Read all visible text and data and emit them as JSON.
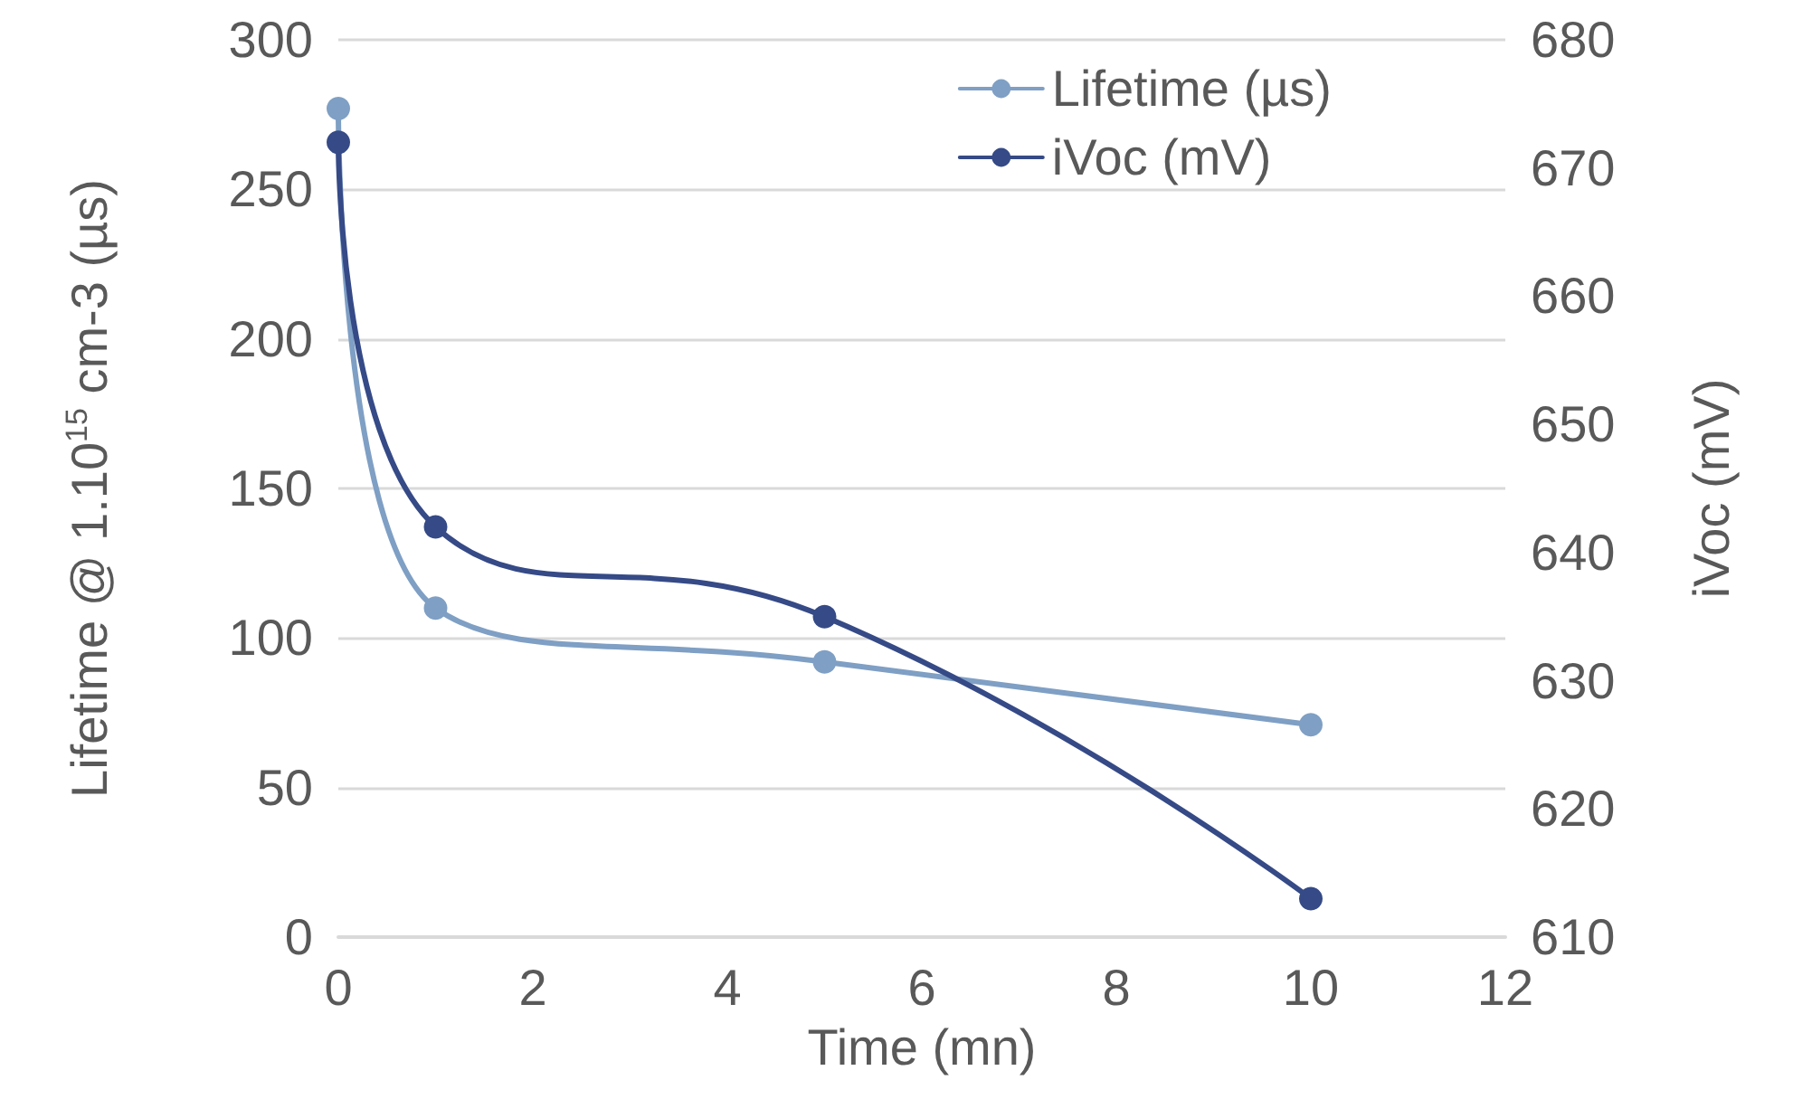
{
  "chart_data": {
    "type": "line",
    "xlabel": "Time (mn)",
    "ylabel": "Lifetime @ 1.10$^{15}$ cm-3 (µs)",
    "y2label": "iVoc (mV)",
    "x": [
      0,
      1,
      5,
      10
    ],
    "series": [
      {
        "name": "Lifetime (µs)",
        "color": "#7f9fc4",
        "values": [
          277,
          110,
          92,
          71
        ]
      },
      {
        "name": "iVoc (mV)",
        "color": "#354a86",
        "values": [
          672,
          642,
          635,
          613
        ],
        "axis": "y2"
      }
    ],
    "xlim": [
      0,
      12
    ],
    "xticks": [
      0,
      2,
      4,
      6,
      8,
      10,
      12
    ],
    "ylim": [
      0,
      300
    ],
    "yticks": [
      0,
      50,
      100,
      150,
      200,
      250,
      300
    ],
    "y2lim": [
      610,
      680
    ],
    "y2ticks": [
      610,
      620,
      630,
      640,
      650,
      660,
      670,
      680
    ],
    "grid": "y",
    "legend": "top right",
    "marker": "circle",
    "line_style": "solid"
  }
}
